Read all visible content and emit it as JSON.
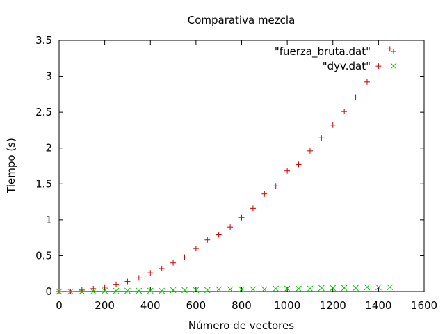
{
  "chart_data": {
    "type": "scatter",
    "title": "Comparativa mezcla",
    "xlabel": "Número de vectores",
    "ylabel": "Tiempo (s)",
    "xlim": [
      0,
      1600
    ],
    "ylim": [
      0,
      3.5
    ],
    "x_ticks": [
      "0",
      "200",
      "400",
      "600",
      "800",
      "1000",
      "1200",
      "1400",
      "1600"
    ],
    "y_ticks": [
      "0",
      "0.5",
      "1",
      "1.5",
      "2",
      "2.5",
      "3",
      "3.5"
    ],
    "grid": false,
    "legend_position": "top-right",
    "series": [
      {
        "name": "\"fuerza_bruta.dat\"",
        "marker": "plus",
        "color": "#cc0000",
        "points": [
          [
            0,
            0.0
          ],
          [
            50,
            0.0
          ],
          [
            100,
            0.02
          ],
          [
            150,
            0.04
          ],
          [
            200,
            0.06
          ],
          [
            250,
            0.1
          ],
          [
            300,
            0.14
          ],
          [
            350,
            0.19
          ],
          [
            400,
            0.26
          ],
          [
            450,
            0.32
          ],
          [
            500,
            0.4
          ],
          [
            550,
            0.48
          ],
          [
            600,
            0.6
          ],
          [
            650,
            0.72
          ],
          [
            700,
            0.79
          ],
          [
            750,
            0.9
          ],
          [
            800,
            1.03
          ],
          [
            850,
            1.16
          ],
          [
            900,
            1.36
          ],
          [
            950,
            1.47
          ],
          [
            1000,
            1.68
          ],
          [
            1050,
            1.77
          ],
          [
            1100,
            1.96
          ],
          [
            1150,
            2.14
          ],
          [
            1200,
            2.32
          ],
          [
            1250,
            2.51
          ],
          [
            1300,
            2.71
          ],
          [
            1350,
            2.92
          ],
          [
            1400,
            3.14
          ],
          [
            1450,
            3.38
          ]
        ]
      },
      {
        "name": "\"dyv.dat\"",
        "marker": "cross",
        "color": "#00cc00",
        "points": [
          [
            0,
            0.0
          ],
          [
            50,
            0.0
          ],
          [
            100,
            0.0
          ],
          [
            150,
            0.0
          ],
          [
            200,
            0.01
          ],
          [
            250,
            0.01
          ],
          [
            300,
            0.01
          ],
          [
            350,
            0.01
          ],
          [
            400,
            0.01
          ],
          [
            450,
            0.01
          ],
          [
            500,
            0.02
          ],
          [
            550,
            0.02
          ],
          [
            600,
            0.02
          ],
          [
            650,
            0.02
          ],
          [
            700,
            0.03
          ],
          [
            750,
            0.03
          ],
          [
            800,
            0.03
          ],
          [
            850,
            0.03
          ],
          [
            900,
            0.03
          ],
          [
            950,
            0.04
          ],
          [
            1000,
            0.04
          ],
          [
            1050,
            0.04
          ],
          [
            1100,
            0.04
          ],
          [
            1150,
            0.05
          ],
          [
            1200,
            0.05
          ],
          [
            1250,
            0.05
          ],
          [
            1300,
            0.05
          ],
          [
            1350,
            0.06
          ],
          [
            1400,
            0.06
          ],
          [
            1450,
            0.06
          ]
        ]
      }
    ]
  }
}
